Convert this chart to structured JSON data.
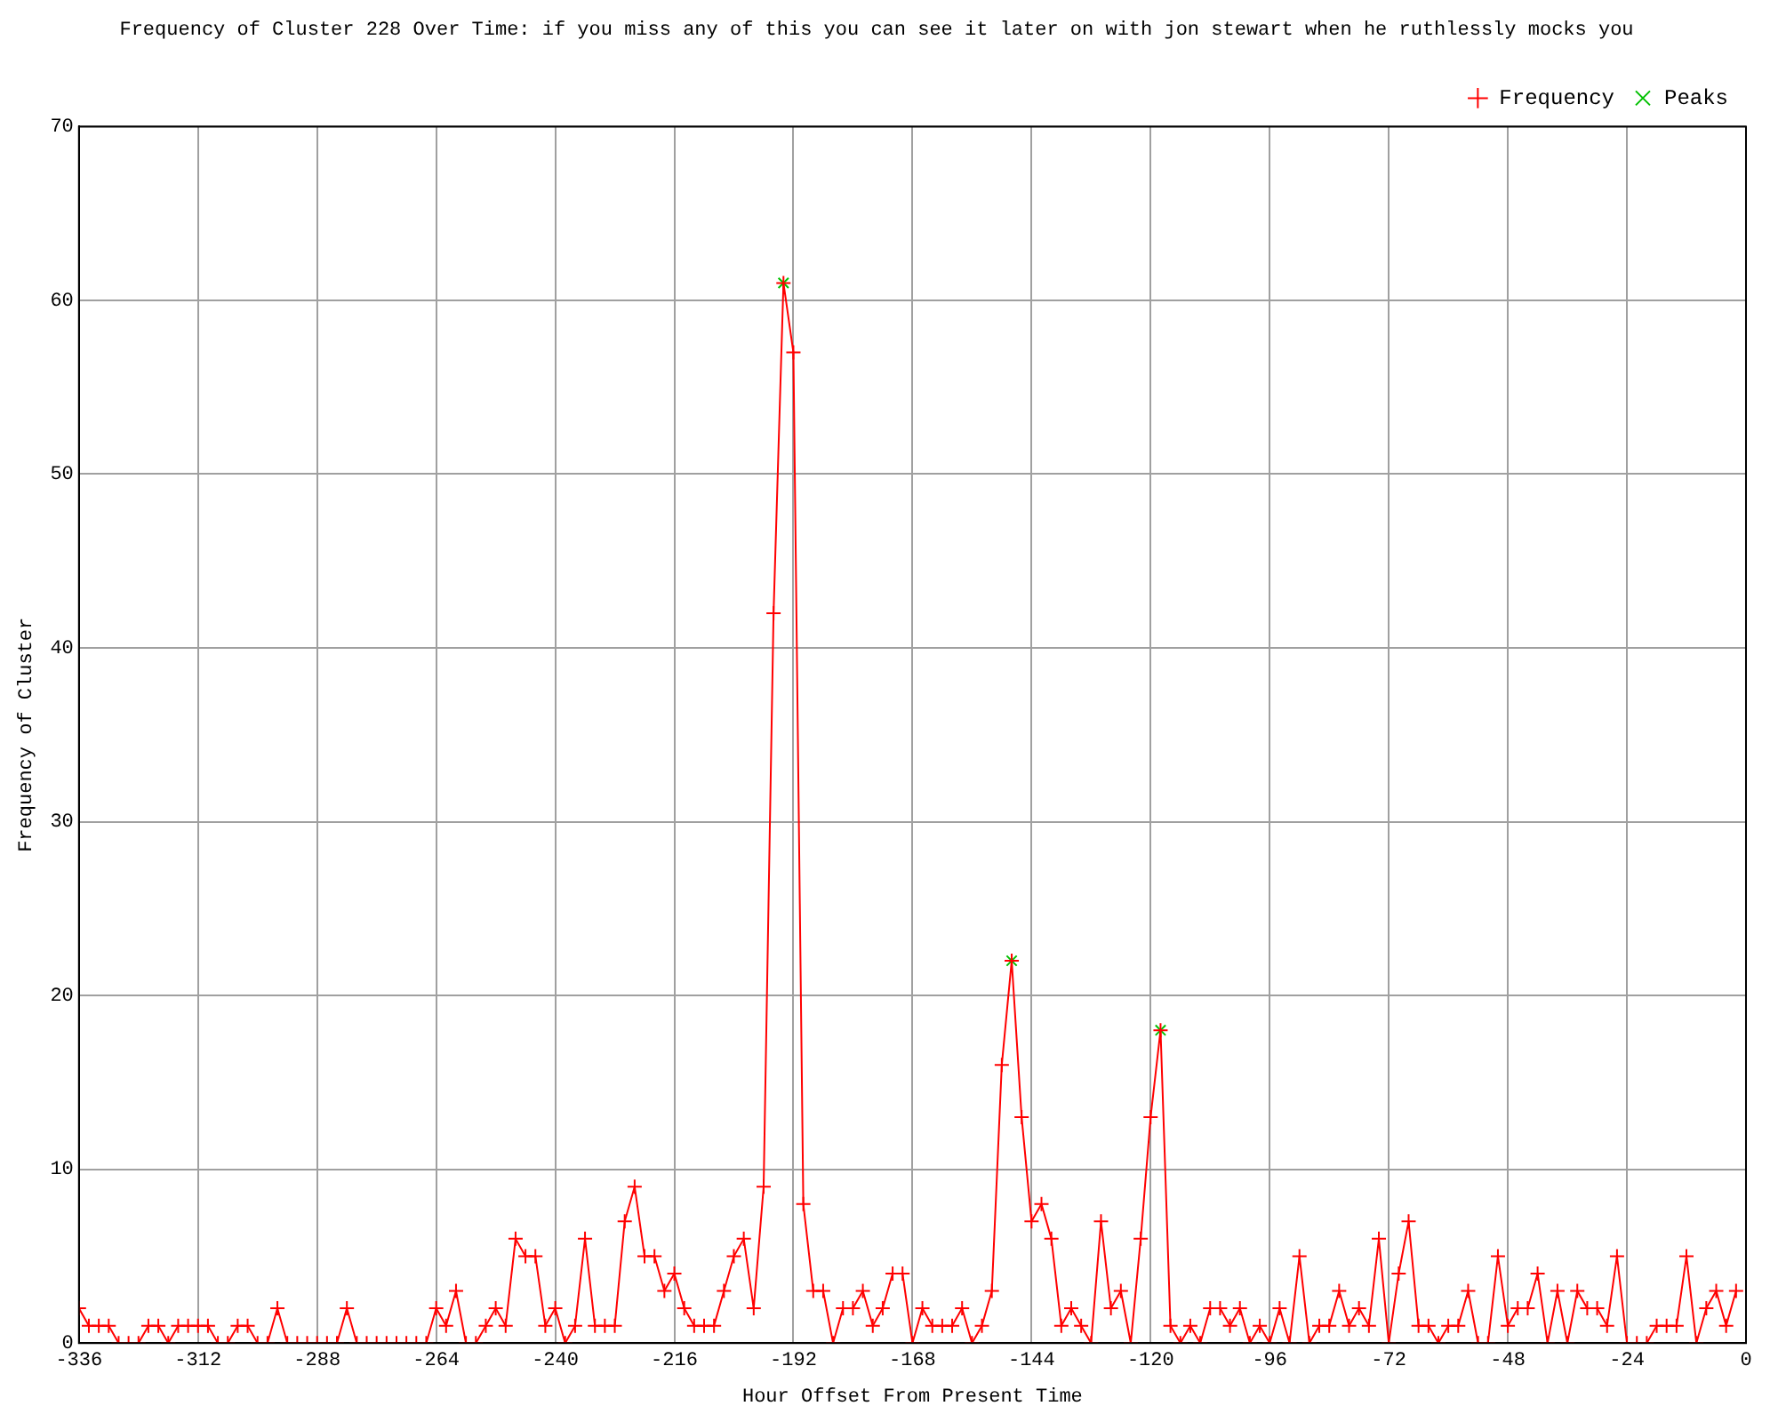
{
  "chart_data": {
    "type": "line",
    "title": "Frequency of Cluster 228 Over Time: if you miss any of this you can see it later on with jon stewart when he ruthlessly mocks you",
    "xlabel": "Hour Offset From Present Time",
    "ylabel": "Frequency of Cluster",
    "xlim": [
      -336,
      0
    ],
    "xticks": [
      -336,
      -312,
      -288,
      -264,
      -240,
      -216,
      -192,
      -168,
      -144,
      -120,
      -96,
      -72,
      -48,
      -24,
      0
    ],
    "ylim": [
      0,
      70
    ],
    "yticks": [
      0,
      10,
      20,
      30,
      40,
      50,
      60,
      70
    ],
    "grid": true,
    "legend": "top right",
    "series": [
      {
        "name": "Frequency",
        "color": "#ff0000",
        "marker": "cross",
        "line_style": "solid",
        "x": [
          -336,
          -334,
          -332,
          -330,
          -328,
          -326,
          -324,
          -322,
          -320,
          -318,
          -316,
          -314,
          -312,
          -310,
          -308,
          -306,
          -304,
          -302,
          -300,
          -298,
          -296,
          -294,
          -292,
          -290,
          -288,
          -286,
          -284,
          -282,
          -280,
          -278,
          -276,
          -274,
          -272,
          -270,
          -268,
          -266,
          -264,
          -262,
          -260,
          -258,
          -256,
          -254,
          -252,
          -250,
          -248,
          -246,
          -244,
          -242,
          -240,
          -238,
          -236,
          -234,
          -232,
          -230,
          -228,
          -226,
          -224,
          -222,
          -220,
          -218,
          -216,
          -214,
          -212,
          -210,
          -208,
          -206,
          -204,
          -202,
          -200,
          -198,
          -196,
          -194,
          -192,
          -190,
          -188,
          -186,
          -184,
          -182,
          -180,
          -178,
          -176,
          -174,
          -172,
          -170,
          -168,
          -166,
          -164,
          -162,
          -160,
          -158,
          -156,
          -154,
          -152,
          -150,
          -148,
          -146,
          -144,
          -142,
          -140,
          -138,
          -136,
          -134,
          -132,
          -130,
          -128,
          -126,
          -124,
          -122,
          -120,
          -118,
          -116,
          -114,
          -112,
          -110,
          -108,
          -106,
          -104,
          -102,
          -100,
          -98,
          -96,
          -94,
          -92,
          -90,
          -88,
          -86,
          -84,
          -82,
          -80,
          -78,
          -76,
          -74,
          -72,
          -70,
          -68,
          -66,
          -64,
          -62,
          -60,
          -58,
          -56,
          -54,
          -52,
          -50,
          -48,
          -46,
          -44,
          -42,
          -40,
          -38,
          -36,
          -34,
          -32,
          -30,
          -28,
          -26,
          -24,
          -22,
          -20,
          -18,
          -16,
          -14,
          -12,
          -10,
          -8,
          -6,
          -4,
          -2
        ],
        "values": [
          2,
          1,
          1,
          1,
          0,
          0,
          0,
          1,
          1,
          0,
          1,
          1,
          1,
          1,
          0,
          0,
          1,
          1,
          0,
          0,
          2,
          0,
          0,
          0,
          0,
          0,
          0,
          2,
          0,
          0,
          0,
          0,
          0,
          0,
          0,
          0,
          2,
          1,
          3,
          0,
          0,
          1,
          2,
          1,
          6,
          5,
          5,
          1,
          2,
          0,
          1,
          6,
          1,
          1,
          1,
          7,
          9,
          5,
          5,
          3,
          4,
          2,
          1,
          1,
          1,
          3,
          5,
          6,
          2,
          9,
          42,
          61,
          57,
          8,
          3,
          3,
          0,
          2,
          2,
          3,
          1,
          2,
          4,
          4,
          0,
          2,
          1,
          1,
          1,
          2,
          0,
          1,
          3,
          16,
          22,
          13,
          7,
          8,
          6,
          1,
          2,
          1,
          0,
          7,
          2,
          3,
          0,
          6,
          13,
          18,
          1,
          0,
          1,
          0,
          2,
          2,
          1,
          2,
          0,
          1,
          0,
          2,
          0,
          5,
          0,
          1,
          1,
          3,
          1,
          2,
          1,
          6,
          0,
          4,
          7,
          1,
          1,
          0,
          1,
          1,
          3,
          0,
          0,
          5,
          1,
          2,
          2,
          4,
          0,
          3,
          0,
          3,
          2,
          2,
          1,
          5,
          0,
          0,
          0,
          1,
          1,
          1,
          5,
          0,
          2,
          3,
          1,
          3
        ]
      },
      {
        "name": "Peaks",
        "type": "scatter",
        "color": "#00c000",
        "marker": "cross",
        "x": [
          -194,
          -148,
          -118
        ],
        "values": [
          61,
          22,
          18
        ]
      }
    ]
  }
}
